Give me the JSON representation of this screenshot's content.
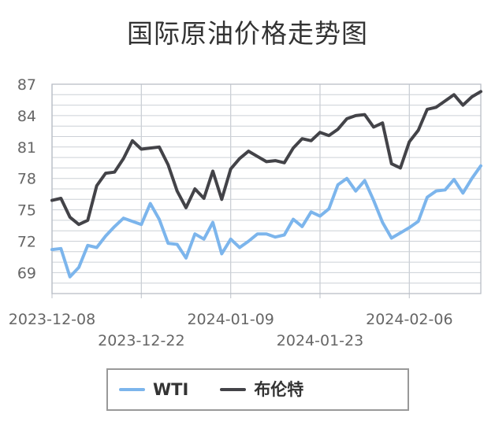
{
  "title": "国际原油价格走势图",
  "legend": {
    "items": [
      {
        "label": "WTI",
        "color": "#7cb5ec"
      },
      {
        "label": "布伦特",
        "color": "#434348"
      }
    ]
  },
  "colors": {
    "wti": "#7cb5ec",
    "brent": "#434348",
    "grid": "#ccd0d6",
    "plot_border": "#b9bec7",
    "axis_label": "#666666",
    "title": "#333333",
    "legend_border": "#999999"
  },
  "chart_data": {
    "type": "line",
    "title": "国际原油价格走势图",
    "xlabel": "",
    "ylabel": "",
    "ylim": [
      67,
      87
    ],
    "yticks": [
      69,
      72,
      75,
      78,
      81,
      84,
      87
    ],
    "grid": true,
    "legend_position": "bottom",
    "xticks": [
      {
        "index": 0,
        "label": "2023-12-08",
        "row": 1
      },
      {
        "index": 10,
        "label": "2023-12-22",
        "row": 2
      },
      {
        "index": 20,
        "label": "2024-01-09",
        "row": 1
      },
      {
        "index": 30,
        "label": "2024-01-23",
        "row": 2
      },
      {
        "index": 40,
        "label": "2024-02-06",
        "row": 1
      }
    ],
    "x": [
      "2023-12-08",
      "2023-12-11",
      "2023-12-12",
      "2023-12-13",
      "2023-12-14",
      "2023-12-15",
      "2023-12-18",
      "2023-12-19",
      "2023-12-20",
      "2023-12-21",
      "2023-12-22",
      "2023-12-26",
      "2023-12-27",
      "2023-12-28",
      "2023-12-29",
      "2024-01-02",
      "2024-01-03",
      "2024-01-04",
      "2024-01-05",
      "2024-01-08",
      "2024-01-09",
      "2024-01-10",
      "2024-01-11",
      "2024-01-12",
      "2024-01-15",
      "2024-01-16",
      "2024-01-17",
      "2024-01-18",
      "2024-01-19",
      "2024-01-22",
      "2024-01-23",
      "2024-01-24",
      "2024-01-25",
      "2024-01-26",
      "2024-01-29",
      "2024-01-30",
      "2024-01-31",
      "2024-02-01",
      "2024-02-02",
      "2024-02-05",
      "2024-02-06",
      "2024-02-07",
      "2024-02-08",
      "2024-02-09",
      "2024-02-12",
      "2024-02-13",
      "2024-02-14",
      "2024-02-15",
      "2024-02-16"
    ],
    "series": [
      {
        "name": "WTI",
        "color": "#7cb5ec",
        "values": [
          71.2,
          71.3,
          68.6,
          69.5,
          71.6,
          71.4,
          72.5,
          73.4,
          74.2,
          73.9,
          73.6,
          75.6,
          74.1,
          71.8,
          71.7,
          70.4,
          72.7,
          72.2,
          73.8,
          70.8,
          72.2,
          71.4,
          72.0,
          72.7,
          72.7,
          72.4,
          72.6,
          74.1,
          73.4,
          74.8,
          74.4,
          75.1,
          77.4,
          78.0,
          76.8,
          77.8,
          75.9,
          73.8,
          72.3,
          72.8,
          73.3,
          73.9,
          76.2,
          76.8,
          76.9,
          77.9,
          76.6,
          78.0,
          79.2
        ]
      },
      {
        "name": "布伦特",
        "color": "#434348",
        "values": [
          75.9,
          76.1,
          74.3,
          73.6,
          74.0,
          77.3,
          78.5,
          78.6,
          79.9,
          81.6,
          80.8,
          80.9,
          81.0,
          79.3,
          76.8,
          75.2,
          77.0,
          76.1,
          78.7,
          76.0,
          78.9,
          79.9,
          80.6,
          80.1,
          79.6,
          79.7,
          79.5,
          80.9,
          81.8,
          81.6,
          82.4,
          82.1,
          82.7,
          83.7,
          84.0,
          84.1,
          82.9,
          83.3,
          79.4,
          79.0,
          81.5,
          82.6,
          84.6,
          84.8,
          85.4,
          86.0,
          85.0,
          85.8,
          86.3
        ]
      }
    ]
  }
}
